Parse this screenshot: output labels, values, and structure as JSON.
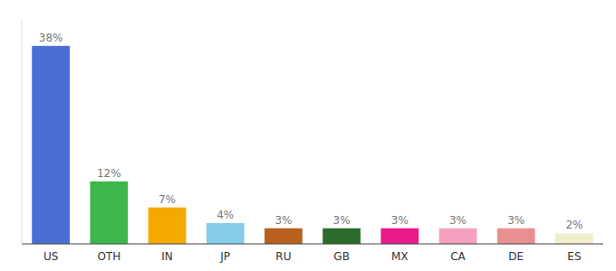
{
  "chart_data": {
    "type": "bar",
    "categories": [
      "US",
      "OTH",
      "IN",
      "JP",
      "RU",
      "GB",
      "MX",
      "CA",
      "DE",
      "ES"
    ],
    "values": [
      38,
      12,
      7,
      4,
      3,
      3,
      3,
      3,
      3,
      2
    ],
    "value_labels": [
      "38%",
      "12%",
      "7%",
      "4%",
      "3%",
      "3%",
      "3%",
      "3%",
      "3%",
      "2%"
    ],
    "colors": [
      "#4a6fd4",
      "#3cb84a",
      "#f5a800",
      "#85cce8",
      "#b8601e",
      "#2d6b2d",
      "#e8198a",
      "#f5a0c0",
      "#e89090",
      "#eeeecc"
    ],
    "ylim": [
      0,
      43
    ],
    "data_labels": true,
    "tick_labels": "x",
    "grid": false
  }
}
